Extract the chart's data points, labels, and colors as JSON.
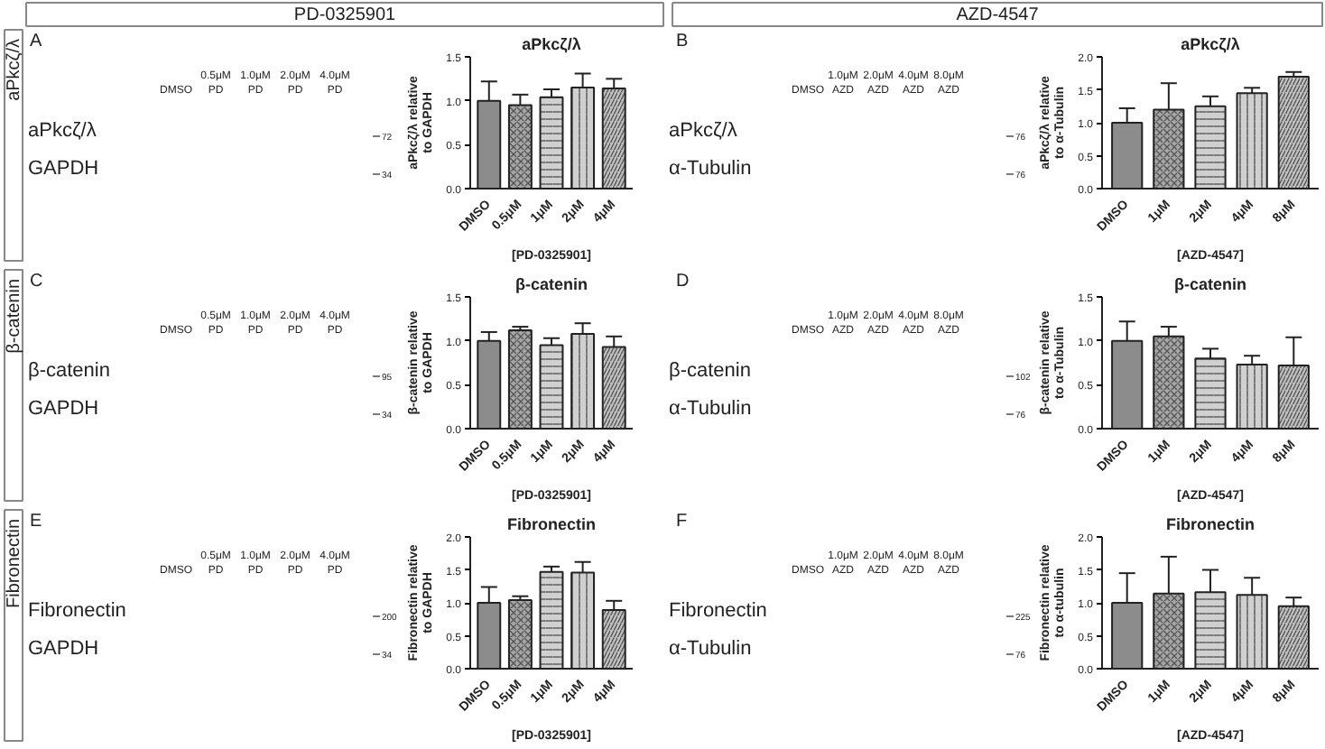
{
  "chart_data": [
    {
      "type": "other",
      "categories": [
        "PD-0325901",
        "AZD-4547"
      ],
      "y_categories": [
        "aPkcζ/λ",
        "β-catenin",
        "Fibronectin"
      ]
    },
    {
      "type": "other",
      "annotations": [
        "A"
      ],
      "categories": [
        "DMSO",
        "0.5μM\nPD",
        "1.0μM\nPD",
        "2.0μM\nPD",
        "4.0μM\nPD"
      ],
      "y_categories": [
        "aPkcζ/λ",
        "GAPDH"
      ],
      "y2_categories": [
        "72",
        "34"
      ]
    },
    {
      "type": "bar",
      "title": "aPkcζ/λ",
      "ylabel": "aPkcζ/λ relative to GAPDH",
      "xlabel": "[PD-0325901]",
      "categories": [
        "DMSO",
        "0.5μM",
        "1μM",
        "2μM",
        "4μM"
      ],
      "values": [
        1.0,
        0.95,
        1.04,
        1.15,
        1.14
      ],
      "errors": [
        [
          1.0,
          1.22
        ],
        [
          0.95,
          1.07
        ],
        [
          1.04,
          1.13
        ],
        [
          1.15,
          1.31
        ],
        [
          1.14,
          1.25
        ]
      ],
      "colors": [
        "#8c8c8c",
        "#a6a6a6",
        "#d0d0d0",
        "#d0d0d0",
        "#c0c0c0"
      ],
      "ylim": [
        0,
        1.5
      ],
      "yticks": [
        {
          "value": 0,
          "label": "0.0"
        },
        {
          "value": 0.5,
          "label": "0.5"
        },
        {
          "value": 1,
          "label": "1.0"
        },
        {
          "value": 1.5,
          "label": "1.5"
        }
      ]
    },
    {
      "type": "other",
      "annotations": [
        "B"
      ],
      "categories": [
        "DMSO",
        "1.0μM\nAZD",
        "2.0μM\nAZD",
        "4.0μM\nAZD",
        "8.0μM\nAZD"
      ],
      "y_categories": [
        "aPkcζ/λ",
        "α-Tubulin"
      ],
      "y2_categories": [
        "76",
        "76"
      ]
    },
    {
      "type": "bar",
      "title": "aPkcζ/λ",
      "ylabel": "aPkcζ/λ relative to α-Tubulin",
      "xlabel": "[AZD-4547]",
      "categories": [
        "DMSO",
        "1μM",
        "2μM",
        "4μM",
        "8μM"
      ],
      "values": [
        1.0,
        1.2,
        1.25,
        1.45,
        1.7
      ],
      "errors": [
        [
          1.0,
          1.22
        ],
        [
          1.2,
          1.6
        ],
        [
          1.25,
          1.4
        ],
        [
          1.45,
          1.53
        ],
        [
          1.7,
          1.77
        ]
      ],
      "colors": [
        "#8c8c8c",
        "#a6a6a6",
        "#d0d0d0",
        "#d0d0d0",
        "#c0c0c0"
      ],
      "ylim": [
        0,
        2.0
      ],
      "yticks": [
        {
          "value": 0,
          "label": "0.0"
        },
        {
          "value": 0.5,
          "label": "0.5"
        },
        {
          "value": 1,
          "label": "1.0"
        },
        {
          "value": 1.5,
          "label": "1.5"
        },
        {
          "value": 2,
          "label": "2.0"
        }
      ]
    },
    {
      "type": "other",
      "annotations": [
        "C"
      ],
      "categories": [
        "DMSO",
        "0.5μM\nPD",
        "1.0μM\nPD",
        "2.0μM\nPD",
        "4.0μM\nPD"
      ],
      "y_categories": [
        "β-catenin",
        "GAPDH"
      ],
      "y2_categories": [
        "95",
        "34"
      ]
    },
    {
      "type": "bar",
      "title": "β-catenin",
      "ylabel": "β-catenin relative to GAPDH",
      "xlabel": "[PD-0325901]",
      "categories": [
        "DMSO",
        "0.5μM",
        "1μM",
        "2μM",
        "4μM"
      ],
      "values": [
        1.0,
        1.12,
        0.95,
        1.08,
        0.93
      ],
      "errors": [
        [
          1.0,
          1.1
        ],
        [
          1.12,
          1.16
        ],
        [
          0.95,
          1.03
        ],
        [
          1.08,
          1.2
        ],
        [
          0.93,
          1.05
        ]
      ],
      "colors": [
        "#8c8c8c",
        "#a6a6a6",
        "#d0d0d0",
        "#d0d0d0",
        "#c0c0c0"
      ],
      "ylim": [
        0,
        1.5
      ],
      "yticks": [
        {
          "value": 0,
          "label": "0.0"
        },
        {
          "value": 0.5,
          "label": "0.5"
        },
        {
          "value": 1,
          "label": "1.0"
        },
        {
          "value": 1.5,
          "label": "1.5"
        }
      ]
    },
    {
      "type": "other",
      "annotations": [
        "D"
      ],
      "categories": [
        "DMSO",
        "1.0μM\nAZD",
        "2.0μM\nAZD",
        "4.0μM\nAZD",
        "8.0μM\nAZD"
      ],
      "y_categories": [
        "β-catenin",
        "α-Tubulin"
      ],
      "y2_categories": [
        "102",
        "76"
      ]
    },
    {
      "type": "bar",
      "title": "β-catenin",
      "ylabel": "β-catenin relative to α-Tubulin",
      "xlabel": "[AZD-4547]",
      "categories": [
        "DMSO",
        "1μM",
        "2μM",
        "4μM",
        "8μM"
      ],
      "values": [
        1.0,
        1.05,
        0.8,
        0.73,
        0.72
      ],
      "errors": [
        [
          1.0,
          1.22
        ],
        [
          1.05,
          1.16
        ],
        [
          0.8,
          0.91
        ],
        [
          0.73,
          0.83
        ],
        [
          0.72,
          1.04
        ]
      ],
      "colors": [
        "#8c8c8c",
        "#a6a6a6",
        "#d0d0d0",
        "#d0d0d0",
        "#c0c0c0"
      ],
      "ylim": [
        0,
        1.5
      ],
      "yticks": [
        {
          "value": 0,
          "label": "0.0"
        },
        {
          "value": 0.5,
          "label": "0.5"
        },
        {
          "value": 1,
          "label": "1.0"
        },
        {
          "value": 1.5,
          "label": "1.5"
        }
      ]
    },
    {
      "type": "other",
      "annotations": [
        "E"
      ],
      "categories": [
        "DMSO",
        "0.5μM\nPD",
        "1.0μM\nPD",
        "2.0μM\nPD",
        "4.0μM\nPD"
      ],
      "y_categories": [
        "Fibronectin",
        "GAPDH"
      ],
      "y2_categories": [
        "200",
        "34"
      ]
    },
    {
      "type": "bar",
      "title": "Fibronectin",
      "ylabel": "Fibronectin relative to GAPDH",
      "xlabel": "[PD-0325901]",
      "categories": [
        "DMSO",
        "0.5μM",
        "1μM",
        "2μM",
        "4μM"
      ],
      "values": [
        1.0,
        1.04,
        1.47,
        1.46,
        0.89
      ],
      "errors": [
        [
          1.0,
          1.24
        ],
        [
          1.04,
          1.1
        ],
        [
          1.47,
          1.55
        ],
        [
          1.46,
          1.62
        ],
        [
          0.89,
          1.03
        ]
      ],
      "colors": [
        "#8c8c8c",
        "#a6a6a6",
        "#d0d0d0",
        "#d0d0d0",
        "#c0c0c0"
      ],
      "ylim": [
        0,
        2.0
      ],
      "yticks": [
        {
          "value": 0,
          "label": "0.0"
        },
        {
          "value": 0.5,
          "label": "0.5"
        },
        {
          "value": 1,
          "label": "1.0"
        },
        {
          "value": 1.5,
          "label": "1.5"
        },
        {
          "value": 2,
          "label": "2.0"
        }
      ]
    },
    {
      "type": "other",
      "annotations": [
        "F"
      ],
      "categories": [
        "DMSO",
        "1.0μM\nAZD",
        "2.0μM\nAZD",
        "4.0μM\nAZD",
        "8.0μM\nAZD"
      ],
      "y_categories": [
        "Fibronectin",
        "α-Tubulin"
      ],
      "y2_categories": [
        "225",
        "76"
      ]
    },
    {
      "type": "bar",
      "title": "Fibronectin",
      "ylabel": "Fibronectin relative to α-tubulin",
      "xlabel": "[AZD-4547]",
      "categories": [
        "DMSO",
        "1μM",
        "2μM",
        "4μM",
        "8μM"
      ],
      "values": [
        1.0,
        1.14,
        1.16,
        1.12,
        0.95
      ],
      "errors": [
        [
          1.0,
          1.45
        ],
        [
          1.14,
          1.7
        ],
        [
          1.16,
          1.5
        ],
        [
          1.12,
          1.38
        ],
        [
          0.95,
          1.08
        ]
      ],
      "colors": [
        "#8c8c8c",
        "#a6a6a6",
        "#d0d0d0",
        "#d0d0d0",
        "#c0c0c0"
      ],
      "ylim": [
        0,
        2.0
      ],
      "yticks": [
        {
          "value": 0,
          "label": "0.0"
        },
        {
          "value": 0.5,
          "label": "0.5"
        },
        {
          "value": 1,
          "label": "1.0"
        },
        {
          "value": 1.5,
          "label": "1.5"
        },
        {
          "value": 2,
          "label": "2.0"
        }
      ]
    }
  ]
}
